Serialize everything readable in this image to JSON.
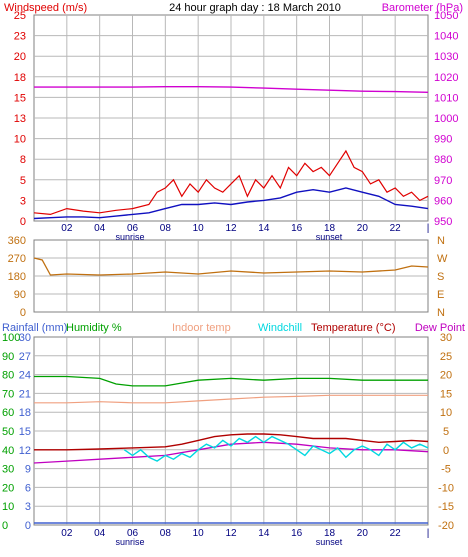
{
  "colors": {
    "wind": "#e00000",
    "gust_line": "#e00000",
    "avg_line": "#1010c0",
    "baro": "#d000d0",
    "dir": "#c07010",
    "rain": "#4060d0",
    "humidity": "#00a000",
    "indoor": "#f0a080",
    "windchill": "#00d8e0",
    "temperature": "#b00000",
    "dewpoint": "#c000c0",
    "grid": "#b8b8b8",
    "axis_temp": "#c07010"
  },
  "chart_data": [
    {
      "type": "line",
      "title": "24 hour graph day : 18 March 2010",
      "left_axis_label": "Windspeed (m/s)",
      "right_axis_label": "Barometer (hPa)",
      "left_ticks": [
        "0",
        "3",
        "5",
        "8",
        "10",
        "13",
        "15",
        "18",
        "20",
        "23",
        "25"
      ],
      "left_range": [
        0,
        25
      ],
      "right_ticks": [
        "950",
        "960",
        "970",
        "980",
        "990",
        "1000",
        "1010",
        "1020",
        "1030",
        "1040",
        "1050"
      ],
      "right_range": [
        950,
        1050
      ],
      "x_ticks": [
        "02",
        "04",
        "06",
        "08",
        "10",
        "12",
        "14",
        "16",
        "18",
        "20",
        "22"
      ],
      "x_range": [
        0,
        24
      ],
      "sunrise_label": "sunrise",
      "sunset_label": "sunset",
      "sunrise_hour": 6.3,
      "sunset_hour": 18.3,
      "grid": true,
      "series": [
        {
          "key": "gust",
          "x": [
            0,
            1,
            2,
            3,
            4,
            5,
            6,
            7,
            7.5,
            8,
            8.5,
            9,
            9.5,
            10,
            10.5,
            11,
            11.5,
            12,
            12.5,
            13,
            13.5,
            14,
            14.5,
            15,
            15.5,
            16,
            16.5,
            17,
            17.5,
            18,
            18.5,
            19,
            19.5,
            20,
            20.5,
            21,
            21.5,
            22,
            22.5,
            23,
            23.5,
            24
          ],
          "values": [
            1.0,
            0.8,
            1.5,
            1.2,
            1.0,
            1.3,
            1.5,
            2.0,
            3.5,
            4.0,
            5.0,
            3.0,
            4.5,
            3.5,
            5.0,
            4.0,
            3.5,
            4.5,
            5.5,
            3.0,
            5.0,
            4.0,
            5.5,
            4.0,
            6.5,
            5.5,
            7.0,
            6.0,
            6.5,
            5.5,
            7.0,
            8.5,
            6.5,
            6.0,
            4.5,
            5.0,
            3.5,
            4.0,
            3.0,
            3.5,
            2.5,
            3.0
          ]
        },
        {
          "key": "avg",
          "x": [
            0,
            1,
            2,
            3,
            4,
            5,
            6,
            7,
            8,
            9,
            10,
            11,
            12,
            13,
            14,
            15,
            16,
            17,
            18,
            19,
            20,
            21,
            22,
            23,
            24
          ],
          "values": [
            0.3,
            0.4,
            0.5,
            0.5,
            0.4,
            0.6,
            0.8,
            1.0,
            1.5,
            2.0,
            2.0,
            2.2,
            2.0,
            2.3,
            2.5,
            2.8,
            3.5,
            3.8,
            3.5,
            4.0,
            3.5,
            3.0,
            2.0,
            1.8,
            1.5
          ]
        },
        {
          "key": "baro",
          "x": [
            0,
            2,
            4,
            6,
            8,
            10,
            12,
            14,
            16,
            18,
            20,
            22,
            24
          ],
          "values": [
            1015,
            1015,
            1015,
            1015,
            1015.2,
            1015.2,
            1015,
            1014.5,
            1014,
            1013.5,
            1013,
            1012.8,
            1012.5
          ]
        }
      ]
    },
    {
      "type": "line",
      "left_ticks": [
        "0",
        "90",
        "180",
        "270",
        "360"
      ],
      "left_range": [
        0,
        360
      ],
      "right_ticks": [
        "N",
        "E",
        "S",
        "W",
        "N"
      ],
      "x_range": [
        0,
        24
      ],
      "grid": true,
      "series": [
        {
          "key": "dir",
          "x": [
            0,
            0.5,
            1,
            2,
            4,
            6,
            8,
            10,
            12,
            14,
            16,
            18,
            20,
            22,
            23,
            24
          ],
          "values": [
            270,
            260,
            185,
            190,
            185,
            190,
            200,
            190,
            205,
            195,
            200,
            205,
            200,
            210,
            230,
            225
          ]
        }
      ]
    },
    {
      "type": "line",
      "legend": [
        "Rainfall (mm)",
        "Humidity %",
        "Indoor temp",
        "Windchill",
        "Temperature (°C)",
        "Dew Point"
      ],
      "rain_ticks": [
        "0",
        "3",
        "6",
        "9",
        "12",
        "15",
        "18",
        "21",
        "24",
        "27",
        "30"
      ],
      "hum_ticks": [
        "0",
        "10",
        "20",
        "30",
        "40",
        "50",
        "60",
        "70",
        "80",
        "90",
        "100"
      ],
      "temp_ticks": [
        "-20",
        "-15",
        "-10",
        "-5",
        "0",
        "5",
        "10",
        "15",
        "20",
        "25",
        "30"
      ],
      "temp_range": [
        -20,
        30
      ],
      "hum_range": [
        0,
        100
      ],
      "x_ticks": [
        "02",
        "04",
        "06",
        "08",
        "10",
        "12",
        "14",
        "16",
        "18",
        "20",
        "22"
      ],
      "x_range": [
        0,
        24
      ],
      "sunrise_label": "sunrise",
      "sunset_label": "sunset",
      "grid": true,
      "series": [
        {
          "key": "humidity",
          "x": [
            0,
            2,
            4,
            5,
            6,
            8,
            10,
            12,
            14,
            16,
            18,
            20,
            22,
            24
          ],
          "values": [
            79,
            79,
            78,
            75,
            74,
            74,
            77,
            78,
            77,
            78,
            78,
            77,
            77,
            77
          ]
        },
        {
          "key": "indoor",
          "x": [
            0,
            2,
            4,
            6,
            8,
            10,
            12,
            14,
            16,
            18,
            20,
            22,
            24
          ],
          "values": [
            12.5,
            12.5,
            12.8,
            12.5,
            12.5,
            13,
            13.5,
            14,
            14.2,
            14.5,
            14.5,
            14.5,
            14.5
          ]
        },
        {
          "key": "temperature",
          "x": [
            0,
            2,
            4,
            6,
            8,
            9,
            10,
            11,
            12,
            13,
            14,
            15,
            16,
            17,
            18,
            19,
            20,
            21,
            22,
            23,
            24
          ],
          "values": [
            0.0,
            0.0,
            0.2,
            0.5,
            0.8,
            1.5,
            2.5,
            3.5,
            4.0,
            4.2,
            4.2,
            4.0,
            3.5,
            3.0,
            3.0,
            3.0,
            2.5,
            2.0,
            2.2,
            2.5,
            2.2
          ]
        },
        {
          "key": "windchill",
          "x": [
            5.5,
            6,
            6.5,
            7,
            7.5,
            8,
            8.5,
            9,
            9.5,
            10,
            10.5,
            11,
            11.5,
            12,
            12.5,
            13,
            13.5,
            14,
            14.5,
            15,
            15.5,
            16,
            16.5,
            17,
            17.5,
            18,
            18.5,
            19,
            19.5,
            20,
            20.5,
            21,
            21.5,
            22,
            22.5,
            23,
            23.5,
            24
          ],
          "values": [
            0.0,
            -1.5,
            0.0,
            -2.0,
            -3.0,
            -1.5,
            -2.5,
            -1.0,
            -2.0,
            0.0,
            1.5,
            0.5,
            2.5,
            1.0,
            3.0,
            2.0,
            3.5,
            2.0,
            3.5,
            2.5,
            1.5,
            0.0,
            -1.5,
            1.0,
            0.0,
            -1.0,
            0.5,
            -2.0,
            0.0,
            1.0,
            0.0,
            -1.5,
            1.5,
            0.0,
            2.0,
            0.5,
            1.5,
            0.5
          ]
        },
        {
          "key": "dewpoint",
          "x": [
            0,
            2,
            4,
            6,
            8,
            10,
            12,
            14,
            16,
            18,
            20,
            22,
            24
          ],
          "values": [
            -3.5,
            -3.0,
            -2.5,
            -2.0,
            -1.5,
            0.0,
            1.5,
            2.0,
            1.5,
            0.5,
            0.0,
            0.0,
            -0.5
          ]
        },
        {
          "key": "rain",
          "x": [
            0,
            24
          ],
          "values": [
            0,
            0
          ]
        }
      ]
    }
  ]
}
